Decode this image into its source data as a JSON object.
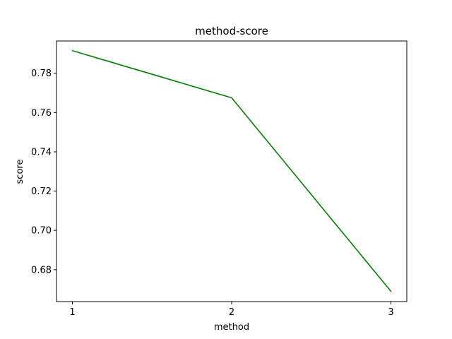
{
  "chart_data": {
    "type": "line",
    "title": "method-score",
    "xlabel": "method",
    "ylabel": "score",
    "x": [
      1,
      2,
      3
    ],
    "series": [
      {
        "values": [
          0.7915,
          0.7675,
          0.669
        ],
        "color": "#008000"
      }
    ],
    "xlim": [
      0.9,
      3.1
    ],
    "ylim": [
      0.66375,
      0.79645
    ],
    "xticks": [
      1,
      2,
      3
    ],
    "xtick_labels": [
      "1",
      "2",
      "3"
    ],
    "yticks": [
      0.68,
      0.7,
      0.72,
      0.74,
      0.76,
      0.78
    ],
    "ytick_labels": [
      "0.68",
      "0.70",
      "0.72",
      "0.74",
      "0.76",
      "0.78"
    ],
    "grid": false,
    "legend": "none"
  }
}
